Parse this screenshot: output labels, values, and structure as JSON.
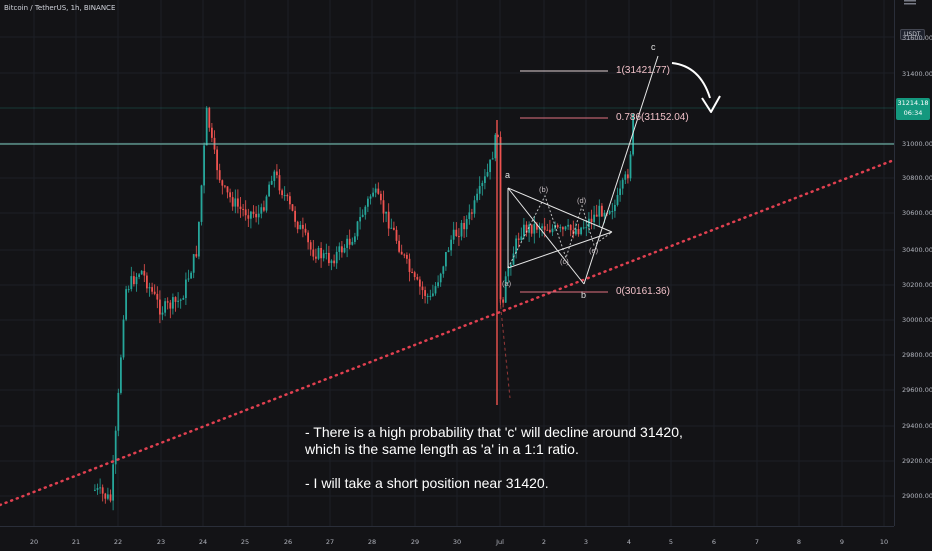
{
  "header": {
    "symbol": "Bitcoin / TetherUS, 1h, BINANCE",
    "currency": "USDT"
  },
  "price_axis": {
    "ticks": [
      "31600.00",
      "31400.00",
      "31000.00",
      "30800.00",
      "30600.00",
      "30400.00",
      "30200.00",
      "30000.00",
      "29800.00",
      "29600.00",
      "29400.00",
      "29200.00",
      "29000.00"
    ],
    "last_price": "31214.18",
    "countdown": "06:34"
  },
  "time_axis": {
    "ticks": [
      "20",
      "21",
      "22",
      "23",
      "24",
      "25",
      "26",
      "27",
      "28",
      "29",
      "30",
      "Jul",
      "2",
      "3",
      "4",
      "5",
      "6",
      "7",
      "8",
      "9",
      "10"
    ]
  },
  "fibonacci": [
    {
      "level": "1(31421.77)"
    },
    {
      "level": "0.786(31152.04)"
    },
    {
      "level": "0(30161.36)"
    }
  ],
  "wave_labels": {
    "a": "a",
    "b": "b",
    "c": "c",
    "sub": [
      "(a)",
      "(b)",
      "(c)",
      "(d)",
      "(e)"
    ]
  },
  "annotation": {
    "line1": "- There is a high probability that 'c' will decline around 31420,",
    "line2": "which is the same length as 'a' in a 1:1 ratio.",
    "line3": "- I will take a short position near 31420."
  },
  "colors": {
    "background": "#131316",
    "up_candle": "#26a69a",
    "down_candle": "#ef5350",
    "horizontal_line": "#7fd1c2",
    "trendline": "#e04050",
    "price_badge": "#14987e"
  },
  "icons": {
    "axis_scroll": "scroll-icon",
    "curved_arrow": "curved-arrow-icon"
  }
}
